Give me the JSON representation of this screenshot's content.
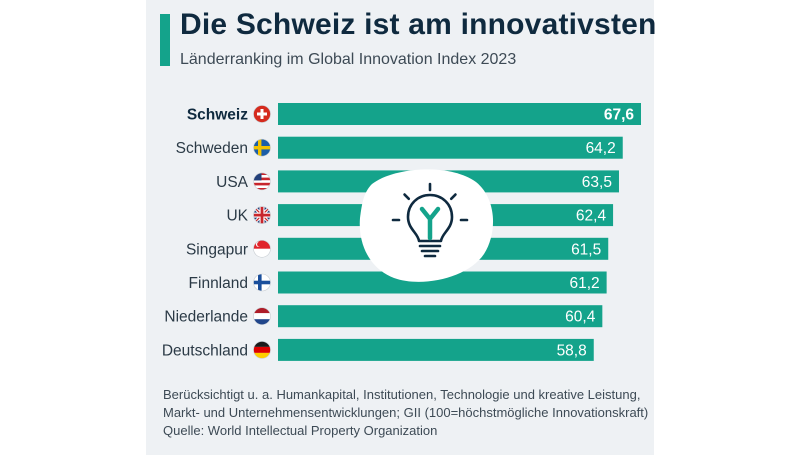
{
  "header": {
    "title": "Die Schweiz ist am innovativsten",
    "subtitle": "Länderranking im Global Innovation Index 2023"
  },
  "footnote": {
    "line1": "Berücksichtigt u. a. Humankapital, Institutionen, Technologie und kreative Leistung,",
    "line2": "Markt- und Unternehmensentwicklungen; GII (100=höchstmögliche Innovationskraft)",
    "line3": "Quelle: World Intellectual Property Organization"
  },
  "colors": {
    "bar": "#14a38b",
    "title": "#0f2a3f",
    "text": "#2b3a46",
    "background": "#eef1f4"
  },
  "icon": "lightbulb-icon",
  "chart_data": {
    "type": "bar",
    "orientation": "horizontal",
    "categories": [
      "Schweiz",
      "Schweden",
      "USA",
      "UK",
      "Singapur",
      "Finnland",
      "Niederlande",
      "Deutschland"
    ],
    "values": [
      67.6,
      64.2,
      63.5,
      62.4,
      61.5,
      61.2,
      60.4,
      58.8
    ],
    "value_labels": [
      "67,6",
      "64,2",
      "63,5",
      "62,4",
      "61,5",
      "61,2",
      "60,4",
      "58,8"
    ],
    "flags": [
      "switzerland-flag-icon",
      "sweden-flag-icon",
      "usa-flag-icon",
      "uk-flag-icon",
      "singapore-flag-icon",
      "finland-flag-icon",
      "netherlands-flag-icon",
      "germany-flag-icon"
    ],
    "highlight": "Schweiz",
    "xlim": [
      0,
      67.6
    ],
    "grid": false,
    "legend": "none"
  }
}
